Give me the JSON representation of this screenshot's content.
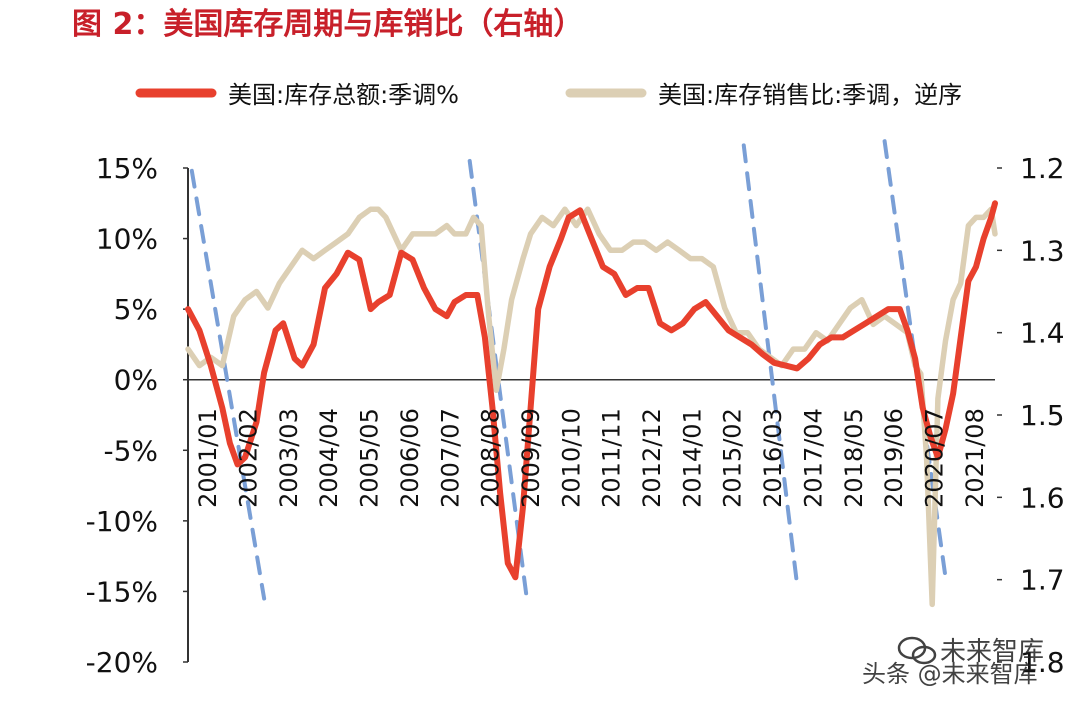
{
  "colors": {
    "title": "#c8202a",
    "inventory_line": "#e8402d",
    "ratio_line": "#dccfb4",
    "trend_dash": "#7a9fd6",
    "axis": "#333333",
    "text": "#111111",
    "watermark": "#222222"
  },
  "watermark": {
    "line1": "未来智库",
    "line2": "头条 @未来智库"
  },
  "chart_data": {
    "type": "line",
    "title": "图 2：美国库存周期与库销比（右轴）",
    "legend_position": "top",
    "grid": false,
    "x_tick_labels": [
      "2001/01",
      "2002/02",
      "2003/03",
      "2004/04",
      "2005/05",
      "2006/06",
      "2007/07",
      "2008/08",
      "2009/09",
      "2010/10",
      "2011/11",
      "2012/12",
      "2014/01",
      "2015/02",
      "2016/03",
      "2017/04",
      "2018/05",
      "2019/06",
      "2020/07",
      "2021/08"
    ],
    "x_range": [
      2001.0,
      2022.2
    ],
    "y_left": {
      "ticks": [
        "15%",
        "10%",
        "5%",
        "0%",
        "-5%",
        "-10%",
        "-15%",
        "-20%"
      ],
      "range": [
        -20,
        15
      ]
    },
    "y_right": {
      "ticks": [
        "1.2",
        "1.3",
        "1.4",
        "1.5",
        "1.6",
        "1.7",
        "1.8"
      ],
      "range": [
        1.2,
        1.8
      ],
      "reversed": true
    },
    "series": [
      {
        "name": "美国:库存总额:季调%",
        "axis": "left",
        "x": [
          2001.0,
          2001.3,
          2001.6,
          2001.9,
          2002.1,
          2002.3,
          2002.5,
          2002.8,
          2003.0,
          2003.3,
          2003.5,
          2003.8,
          2004.0,
          2004.3,
          2004.6,
          2004.9,
          2005.2,
          2005.5,
          2005.8,
          2006.0,
          2006.3,
          2006.6,
          2006.9,
          2007.2,
          2007.5,
          2007.8,
          2008.0,
          2008.3,
          2008.6,
          2008.8,
          2009.0,
          2009.2,
          2009.4,
          2009.6,
          2009.8,
          2010.0,
          2010.2,
          2010.5,
          2010.8,
          2011.0,
          2011.3,
          2011.6,
          2011.9,
          2012.2,
          2012.5,
          2012.8,
          2013.1,
          2013.4,
          2013.7,
          2014.0,
          2014.3,
          2014.6,
          2014.9,
          2015.2,
          2015.5,
          2015.8,
          2016.1,
          2016.4,
          2016.7,
          2017.0,
          2017.3,
          2017.6,
          2017.9,
          2018.2,
          2018.5,
          2018.8,
          2019.1,
          2019.4,
          2019.7,
          2019.9,
          2020.1,
          2020.3,
          2020.5,
          2020.7,
          2020.9,
          2021.1,
          2021.3,
          2021.5,
          2021.7,
          2021.9,
          2022.1,
          2022.2
        ],
        "values": [
          5.0,
          3.5,
          1.0,
          -2.0,
          -4.5,
          -6.0,
          -5.5,
          -3.0,
          0.5,
          3.5,
          4.0,
          1.5,
          1.0,
          2.5,
          6.5,
          7.5,
          9.0,
          8.5,
          5.0,
          5.5,
          6.0,
          9.0,
          8.5,
          6.5,
          5.0,
          4.5,
          5.5,
          6.0,
          6.0,
          3.0,
          -2.0,
          -8.0,
          -13.0,
          -14.0,
          -9.0,
          -2.0,
          5.0,
          8.0,
          10.0,
          11.5,
          12.0,
          10.0,
          8.0,
          7.5,
          6.0,
          6.5,
          6.5,
          4.0,
          3.5,
          4.0,
          5.0,
          5.5,
          4.5,
          3.5,
          3.0,
          2.5,
          1.8,
          1.2,
          1.0,
          0.8,
          1.5,
          2.5,
          3.0,
          3.0,
          3.5,
          4.0,
          4.5,
          5.0,
          5.0,
          3.5,
          1.5,
          -2.0,
          -4.0,
          -5.5,
          -3.5,
          -1.0,
          3.0,
          7.0,
          8.0,
          10.0,
          11.5,
          12.5
        ]
      },
      {
        "name": "美国:库存销售比:季调，逆序",
        "axis": "right",
        "x": [
          2001.0,
          2001.3,
          2001.6,
          2001.9,
          2002.2,
          2002.5,
          2002.8,
          2003.1,
          2003.4,
          2003.7,
          2004.0,
          2004.3,
          2004.6,
          2004.9,
          2005.2,
          2005.5,
          2005.8,
          2006.0,
          2006.2,
          2006.4,
          2006.6,
          2006.9,
          2007.2,
          2007.5,
          2007.8,
          2008.0,
          2008.3,
          2008.5,
          2008.7,
          2008.9,
          2009.1,
          2009.3,
          2009.5,
          2009.8,
          2010.0,
          2010.3,
          2010.6,
          2010.9,
          2011.2,
          2011.5,
          2011.8,
          2012.1,
          2012.4,
          2012.7,
          2013.0,
          2013.3,
          2013.6,
          2013.9,
          2014.2,
          2014.5,
          2014.8,
          2015.1,
          2015.4,
          2015.7,
          2016.0,
          2016.3,
          2016.6,
          2016.9,
          2017.2,
          2017.5,
          2017.8,
          2018.1,
          2018.4,
          2018.7,
          2019.0,
          2019.3,
          2019.6,
          2019.9,
          2020.1,
          2020.25,
          2020.4,
          2020.55,
          2020.7,
          2020.9,
          2021.1,
          2021.3,
          2021.5,
          2021.7,
          2021.9,
          2022.1,
          2022.2
        ],
        "values": [
          1.42,
          1.44,
          1.43,
          1.44,
          1.38,
          1.36,
          1.35,
          1.37,
          1.34,
          1.32,
          1.3,
          1.31,
          1.3,
          1.29,
          1.28,
          1.26,
          1.25,
          1.25,
          1.26,
          1.28,
          1.3,
          1.28,
          1.28,
          1.28,
          1.27,
          1.28,
          1.28,
          1.26,
          1.27,
          1.38,
          1.47,
          1.42,
          1.36,
          1.31,
          1.28,
          1.26,
          1.27,
          1.25,
          1.27,
          1.25,
          1.28,
          1.3,
          1.3,
          1.29,
          1.29,
          1.3,
          1.29,
          1.3,
          1.31,
          1.31,
          1.32,
          1.37,
          1.4,
          1.4,
          1.42,
          1.43,
          1.44,
          1.42,
          1.42,
          1.4,
          1.41,
          1.39,
          1.37,
          1.36,
          1.39,
          1.38,
          1.39,
          1.4,
          1.44,
          1.45,
          1.55,
          1.73,
          1.48,
          1.41,
          1.36,
          1.34,
          1.27,
          1.26,
          1.26,
          1.25,
          1.28
        ]
      }
    ],
    "trend_lines": [
      {
        "from": [
          2001.1,
          14.8
        ],
        "to": [
          2003.0,
          -15.5
        ]
      },
      {
        "from": [
          2008.4,
          15.5
        ],
        "to": [
          2009.9,
          -15.5
        ]
      },
      {
        "from": [
          2015.6,
          16.6
        ],
        "to": [
          2017.0,
          -14.5
        ]
      },
      {
        "from": [
          2019.3,
          16.9
        ],
        "to": [
          2020.9,
          -14.0
        ]
      }
    ]
  }
}
